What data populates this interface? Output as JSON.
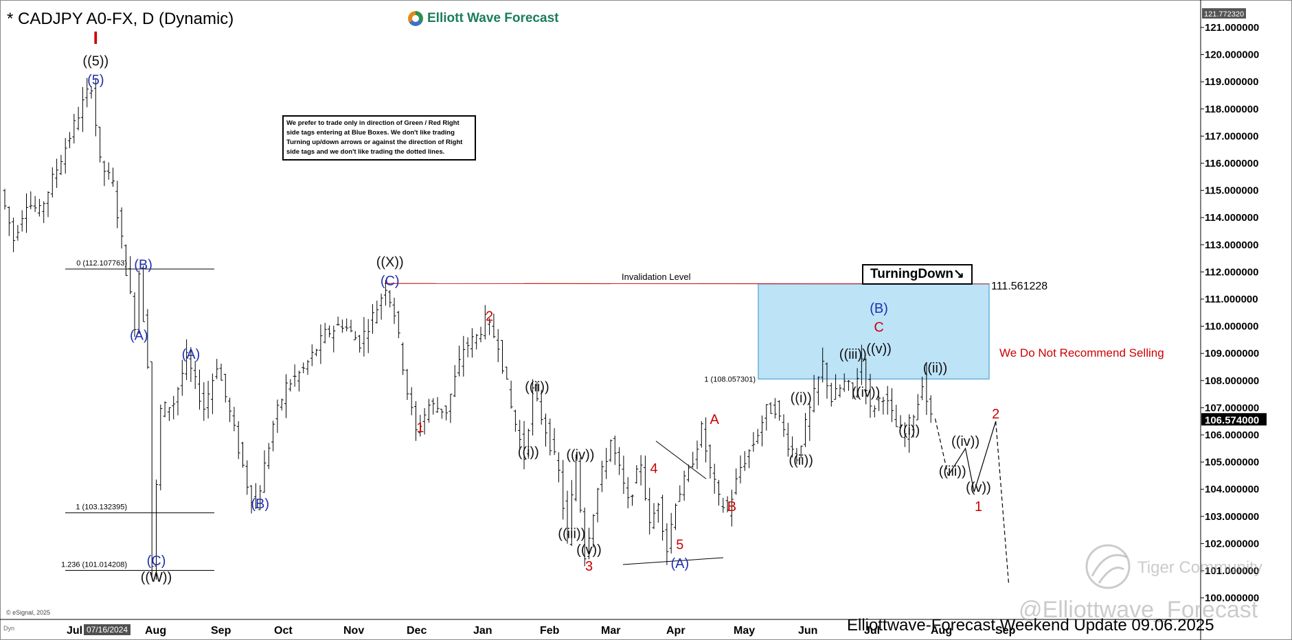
{
  "title": "* CADJPY A0-FX, D (Dynamic)",
  "brand": "Elliott Wave Forecast",
  "note": "We prefer to trade only in direction of Green / Red Right side tags entering at Blue Boxes. We don't like trading Turning up/down arrows or against the direction of Right side tags and we don't like trading the dotted lines.",
  "turning_label": "TurningDown",
  "turning_arrow": "↘",
  "invalidation_label": "Invalidation Level",
  "box_top_value": "111.561228",
  "warning_text": "We Do Not Recommend Selling",
  "footer_text": "Elliottwave-Forecast Weekend  Update 09.06.2025",
  "watermark_1": "Tiger Community",
  "watermark_2": "@Elliottwave_Forecast",
  "copyright": "© eSignal, 2025",
  "dyn_label": "Dyn",
  "cursor_date": "07/16/2024",
  "colors": {
    "red": "#cc0000",
    "blue": "#1f2fb0",
    "black": "#111111",
    "box_fill": "#bde3f7",
    "box_stroke": "#6aaedb",
    "invalidation_line": "#cc2222",
    "price_tag_bg": "#000000"
  },
  "chart_data": {
    "type": "ohlc",
    "symbol": "CADJPY",
    "timeframe": "Daily",
    "y_axis": {
      "range": [
        99.5,
        122.0
      ],
      "ticks": [
        "100.000000",
        "101.000000",
        "102.000000",
        "103.000000",
        "104.000000",
        "105.000000",
        "106.000000",
        "107.000000",
        "108.000000",
        "109.000000",
        "110.000000",
        "111.000000",
        "112.000000",
        "113.000000",
        "114.000000",
        "115.000000",
        "116.000000",
        "117.000000",
        "118.000000",
        "119.000000",
        "120.000000",
        "121.000000"
      ],
      "top_readout": "121.772320",
      "last_price": "106.574000"
    },
    "x_axis_labels": [
      "Jul",
      "Aug",
      "Sep",
      "Oct",
      "Nov",
      "Dec",
      "Jan",
      "Feb",
      "Mar",
      "Apr",
      "May",
      "Jun",
      "Jul",
      "Aug",
      "Sep"
    ],
    "price_path": [
      {
        "i": 0,
        "v": 115.0
      },
      {
        "i": 3,
        "v": 113.2
      },
      {
        "i": 6,
        "v": 114.6
      },
      {
        "i": 9,
        "v": 114.2
      },
      {
        "i": 12,
        "v": 115.4
      },
      {
        "i": 16,
        "v": 117.0
      },
      {
        "i": 19,
        "v": 118.2
      },
      {
        "i": 21,
        "v": 118.9
      },
      {
        "i": 23,
        "v": 116.0
      },
      {
        "i": 26,
        "v": 115.2
      },
      {
        "i": 29,
        "v": 112.1
      },
      {
        "i": 31,
        "v": 110.1
      },
      {
        "i": 32,
        "v": 112.0
      },
      {
        "i": 34,
        "v": 108.7
      },
      {
        "i": 35,
        "v": 101.2
      },
      {
        "i": 37,
        "v": 106.9
      },
      {
        "i": 40,
        "v": 107.2
      },
      {
        "i": 43,
        "v": 108.8
      },
      {
        "i": 47,
        "v": 107.0
      },
      {
        "i": 50,
        "v": 108.6
      },
      {
        "i": 53,
        "v": 106.8
      },
      {
        "i": 57,
        "v": 104.2
      },
      {
        "i": 59,
        "v": 103.3
      },
      {
        "i": 63,
        "v": 106.4
      },
      {
        "i": 66,
        "v": 107.8
      },
      {
        "i": 70,
        "v": 108.4
      },
      {
        "i": 75,
        "v": 109.7
      },
      {
        "i": 79,
        "v": 110.1
      },
      {
        "i": 83,
        "v": 109.4
      },
      {
        "i": 87,
        "v": 110.7
      },
      {
        "i": 89,
        "v": 111.5
      },
      {
        "i": 91,
        "v": 110.5
      },
      {
        "i": 94,
        "v": 107.6
      },
      {
        "i": 96,
        "v": 106.1
      },
      {
        "i": 99,
        "v": 107.1
      },
      {
        "i": 103,
        "v": 106.9
      },
      {
        "i": 107,
        "v": 109.2
      },
      {
        "i": 110,
        "v": 109.6
      },
      {
        "i": 112,
        "v": 110.2
      },
      {
        "i": 115,
        "v": 109.4
      },
      {
        "i": 118,
        "v": 107.0
      },
      {
        "i": 121,
        "v": 105.2
      },
      {
        "i": 123,
        "v": 107.6
      },
      {
        "i": 126,
        "v": 106.2
      },
      {
        "i": 129,
        "v": 104.6
      },
      {
        "i": 131,
        "v": 102.2
      },
      {
        "i": 133,
        "v": 105.1
      },
      {
        "i": 135,
        "v": 101.6
      },
      {
        "i": 138,
        "v": 104.0
      },
      {
        "i": 141,
        "v": 105.8
      },
      {
        "i": 143,
        "v": 104.7
      },
      {
        "i": 145,
        "v": 103.5
      },
      {
        "i": 148,
        "v": 105.0
      },
      {
        "i": 150,
        "v": 102.6
      },
      {
        "i": 152,
        "v": 103.6
      },
      {
        "i": 154,
        "v": 101.8
      },
      {
        "i": 156,
        "v": 103.6
      },
      {
        "i": 159,
        "v": 104.6
      },
      {
        "i": 162,
        "v": 106.2
      },
      {
        "i": 164,
        "v": 104.7
      },
      {
        "i": 166,
        "v": 103.6
      },
      {
        "i": 168,
        "v": 103.2
      },
      {
        "i": 171,
        "v": 104.8
      },
      {
        "i": 174,
        "v": 105.7
      },
      {
        "i": 177,
        "v": 106.9
      },
      {
        "i": 179,
        "v": 107.0
      },
      {
        "i": 182,
        "v": 105.7
      },
      {
        "i": 184,
        "v": 105.2
      },
      {
        "i": 187,
        "v": 106.9
      },
      {
        "i": 190,
        "v": 108.6
      },
      {
        "i": 192,
        "v": 107.3
      },
      {
        "i": 195,
        "v": 107.9
      },
      {
        "i": 197,
        "v": 107.6
      },
      {
        "i": 199,
        "v": 108.8
      },
      {
        "i": 201,
        "v": 106.9
      },
      {
        "i": 204,
        "v": 107.5
      },
      {
        "i": 207,
        "v": 106.3
      },
      {
        "i": 209,
        "v": 106.0
      },
      {
        "i": 212,
        "v": 107.2
      },
      {
        "i": 213,
        "v": 108.0
      },
      {
        "i": 215,
        "v": 106.6
      }
    ],
    "projection": {
      "solid": [
        [
          215,
          106.6
        ],
        [
          218,
          104.5
        ],
        [
          222,
          105.5
        ],
        [
          224,
          103.9
        ],
        [
          229,
          106.5
        ]
      ],
      "dashed": [
        [
          215,
          106.6
        ],
        [
          216,
          105.8
        ],
        [
          218,
          104.5
        ],
        [
          222,
          105.5
        ],
        [
          224,
          103.9
        ],
        [
          229,
          106.5
        ],
        [
          232,
          100.5
        ]
      ]
    },
    "levels": [
      {
        "label": "0 (112.107763)",
        "price": 112.108
      },
      {
        "label": "1 (103.132395)",
        "price": 103.132
      },
      {
        "label": "1.236 (101.014208)",
        "price": 101.014
      },
      {
        "label": "1 (108.057301)",
        "price": 108.057
      }
    ],
    "invalidation_price": 111.561228,
    "blue_box": {
      "top": 111.561228,
      "bottom": 108.057301
    },
    "wave_labels": [
      {
        "text": "I",
        "color": "red",
        "i": 21,
        "v": 120.4
      },
      {
        "text": "((5))",
        "color": "black",
        "i": 21,
        "v": 119.6
      },
      {
        "text": "(5)",
        "color": "blue",
        "i": 21,
        "v": 118.9
      },
      {
        "text": "(B)",
        "color": "blue",
        "i": 32,
        "v": 112.1
      },
      {
        "text": "(A)",
        "color": "blue",
        "i": 31,
        "v": 109.5
      },
      {
        "text": "(A)",
        "color": "blue",
        "i": 43,
        "v": 108.8
      },
      {
        "text": "(C)",
        "color": "blue",
        "i": 35,
        "v": 101.2
      },
      {
        "text": "((W))",
        "color": "black",
        "i": 35,
        "v": 100.6
      },
      {
        "text": "(B)",
        "color": "blue",
        "i": 59,
        "v": 103.3
      },
      {
        "text": "((X))",
        "color": "black",
        "i": 89,
        "v": 112.2
      },
      {
        "text": "(C)",
        "color": "blue",
        "i": 89,
        "v": 111.5
      },
      {
        "text": "1",
        "color": "red",
        "i": 96,
        "v": 106.1
      },
      {
        "text": "2",
        "color": "red",
        "i": 112,
        "v": 110.2
      },
      {
        "text": "((i))",
        "color": "black",
        "i": 121,
        "v": 105.2
      },
      {
        "text": "((ii))",
        "color": "black",
        "i": 123,
        "v": 107.6
      },
      {
        "text": "((iii))",
        "color": "black",
        "i": 131,
        "v": 102.2
      },
      {
        "text": "((iv))",
        "color": "black",
        "i": 133,
        "v": 105.1
      },
      {
        "text": "((v))",
        "color": "black",
        "i": 135,
        "v": 101.6
      },
      {
        "text": "3",
        "color": "red",
        "i": 135,
        "v": 101.0
      },
      {
        "text": "4",
        "color": "red",
        "i": 150,
        "v": 104.6
      },
      {
        "text": "5",
        "color": "red",
        "i": 156,
        "v": 101.8
      },
      {
        "text": "(A)",
        "color": "blue",
        "i": 156,
        "v": 101.1
      },
      {
        "text": "A",
        "color": "red",
        "i": 164,
        "v": 106.4
      },
      {
        "text": "B",
        "color": "red",
        "i": 168,
        "v": 103.2
      },
      {
        "text": "((i))",
        "color": "black",
        "i": 184,
        "v": 107.2
      },
      {
        "text": "((ii))",
        "color": "black",
        "i": 184,
        "v": 104.9
      },
      {
        "text": "((iii))",
        "color": "black",
        "i": 196,
        "v": 108.8
      },
      {
        "text": "((iv))",
        "color": "black",
        "i": 199,
        "v": 107.4
      },
      {
        "text": "((v))",
        "color": "black",
        "i": 202,
        "v": 109.0
      },
      {
        "text": "C",
        "color": "red",
        "i": 202,
        "v": 109.8
      },
      {
        "text": "(B)",
        "color": "blue",
        "i": 202,
        "v": 110.5
      },
      {
        "text": "((i))",
        "color": "black",
        "i": 209,
        "v": 106.0
      },
      {
        "text": "((ii))",
        "color": "black",
        "i": 215,
        "v": 108.3
      },
      {
        "text": "((iii))",
        "color": "black",
        "i": 219,
        "v": 104.5
      },
      {
        "text": "((iv))",
        "color": "black",
        "i": 222,
        "v": 105.6
      },
      {
        "text": "((v))",
        "color": "black",
        "i": 225,
        "v": 103.9
      },
      {
        "text": "1",
        "color": "red",
        "i": 225,
        "v": 103.2
      },
      {
        "text": "2",
        "color": "red",
        "i": 229,
        "v": 106.6
      }
    ]
  }
}
